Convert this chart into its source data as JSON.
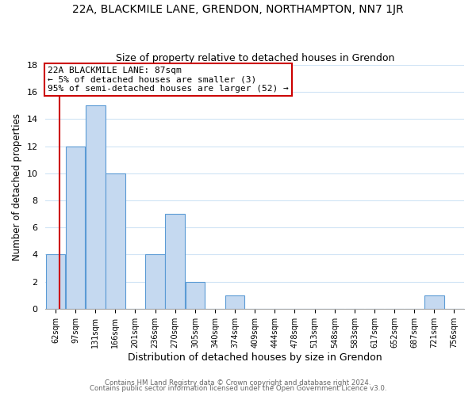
{
  "title": "22A, BLACKMILE LANE, GRENDON, NORTHAMPTON, NN7 1JR",
  "subtitle": "Size of property relative to detached houses in Grendon",
  "xlabel": "Distribution of detached houses by size in Grendon",
  "ylabel": "Number of detached properties",
  "bin_labels": [
    "62sqm",
    "97sqm",
    "131sqm",
    "166sqm",
    "201sqm",
    "236sqm",
    "270sqm",
    "305sqm",
    "340sqm",
    "374sqm",
    "409sqm",
    "444sqm",
    "478sqm",
    "513sqm",
    "548sqm",
    "583sqm",
    "617sqm",
    "652sqm",
    "687sqm",
    "721sqm",
    "756sqm"
  ],
  "bar_heights": [
    4,
    12,
    15,
    10,
    0,
    4,
    7,
    2,
    0,
    1,
    0,
    0,
    0,
    0,
    0,
    0,
    0,
    0,
    0,
    1,
    0
  ],
  "bar_color": "#c5d9f0",
  "bar_edge_color": "#5b9bd5",
  "background_color": "#ffffff",
  "grid_color": "#d0e4f5",
  "ylim": [
    0,
    18
  ],
  "yticks": [
    0,
    2,
    4,
    6,
    8,
    10,
    12,
    14,
    16,
    18
  ],
  "vline_color": "#cc0000",
  "annotation_text": "22A BLACKMILE LANE: 87sqm\n← 5% of detached houses are smaller (3)\n95% of semi-detached houses are larger (52) →",
  "annotation_box_color": "#ffffff",
  "annotation_border_color": "#cc0000",
  "footer_line1": "Contains HM Land Registry data © Crown copyright and database right 2024.",
  "footer_line2": "Contains public sector information licensed under the Open Government Licence v3.0."
}
